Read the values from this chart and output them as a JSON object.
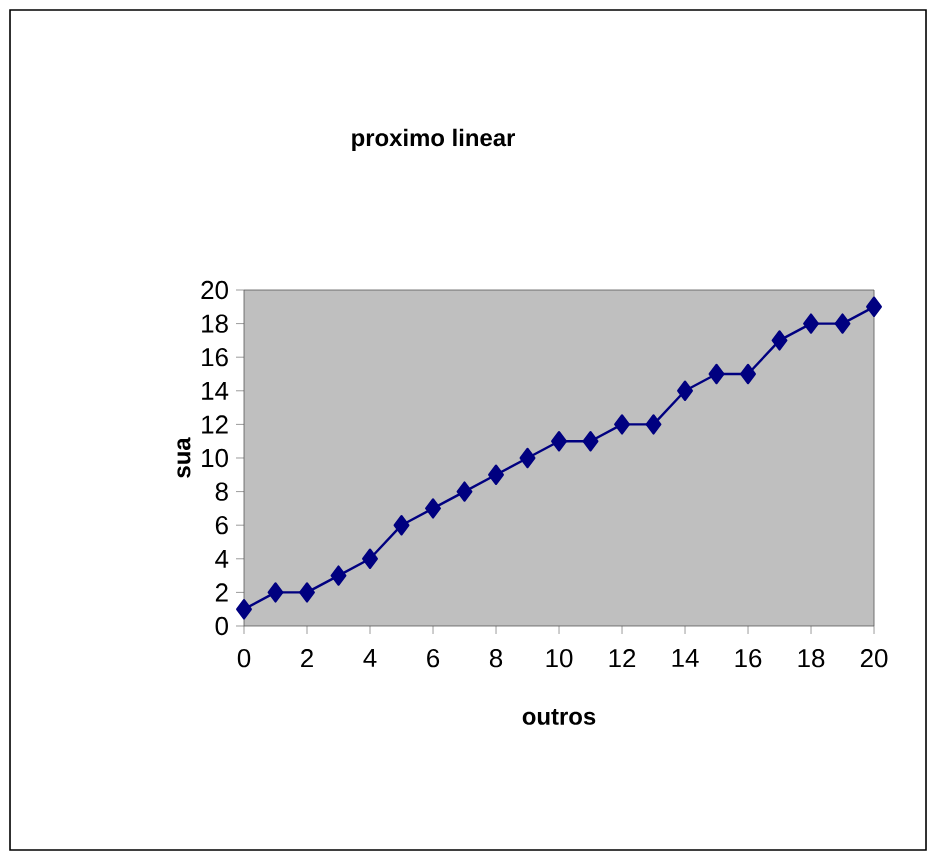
{
  "chart_data": {
    "type": "line",
    "title": "proximo linear",
    "xlabel": "outros",
    "ylabel": "sua",
    "x": [
      0,
      1,
      2,
      3,
      4,
      5,
      6,
      7,
      8,
      9,
      10,
      11,
      12,
      13,
      14,
      15,
      16,
      17,
      18,
      19,
      20
    ],
    "series": [
      {
        "color": "#000080",
        "values": [
          1,
          2,
          2,
          3,
          4,
          6,
          7,
          8,
          9,
          10,
          11,
          11,
          12,
          12,
          14,
          15,
          15,
          17,
          18,
          18,
          19
        ]
      }
    ],
    "xlim": [
      0,
      20
    ],
    "ylim": [
      0,
      20
    ],
    "xticks": [
      0,
      2,
      4,
      6,
      8,
      10,
      12,
      14,
      16,
      18,
      20
    ],
    "yticks": [
      0,
      2,
      4,
      6,
      8,
      10,
      12,
      14,
      16,
      18,
      20
    ],
    "marker": "diamond",
    "line_style": "solid"
  }
}
